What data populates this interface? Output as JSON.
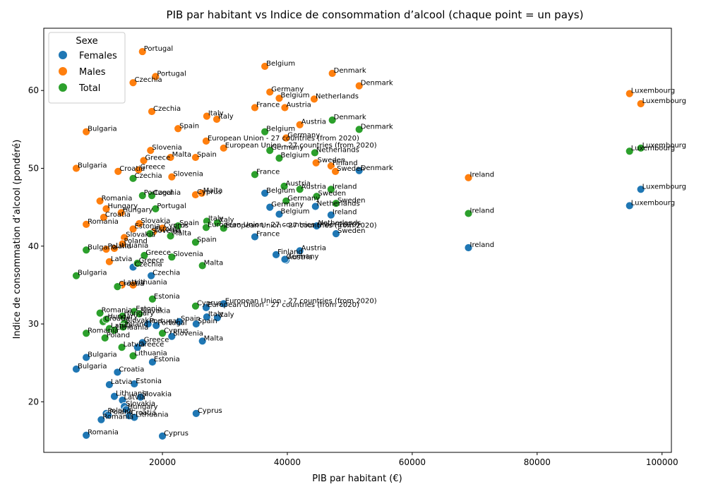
{
  "chart_data": {
    "type": "scatter",
    "title": "PIB par habitant vs Indice de consommation d’alcool (chaque point = un pays)",
    "xlabel": "PIB par habitant (€)",
    "ylabel": "Indice de consommation d’alcool (pondéré)",
    "xlim": [
      1000,
      101500
    ],
    "ylim": [
      13.5,
      68
    ],
    "xticks": [
      20000,
      40000,
      60000,
      80000,
      100000
    ],
    "xtick_labels": [
      "20000",
      "40000",
      "60000",
      "80000",
      "100000"
    ],
    "yticks": [
      20,
      30,
      40,
      50,
      60
    ],
    "ytick_labels": [
      "20",
      "30",
      "40",
      "50",
      "60"
    ],
    "grid": false,
    "legend": {
      "title": "Sexe",
      "placement": "top-left"
    },
    "series": [
      {
        "name": "Females",
        "color": "#1f77b4",
        "points": [
          {
            "x": 7800,
            "y": 25.7,
            "label": "Bulgaria"
          },
          {
            "x": 6200,
            "y": 24.2,
            "label": "Bulgaria"
          },
          {
            "x": 7800,
            "y": 15.7,
            "label": "Romania"
          },
          {
            "x": 10200,
            "y": 17.7,
            "label": "Romania"
          },
          {
            "x": 11000,
            "y": 18.5,
            "label": "Poland"
          },
          {
            "x": 11300,
            "y": 18.3,
            "label": "Poland"
          },
          {
            "x": 11500,
            "y": 22.2,
            "label": "Latvia"
          },
          {
            "x": 12300,
            "y": 20.7,
            "label": "Lithuania"
          },
          {
            "x": 12800,
            "y": 23.8,
            "label": "Croatia"
          },
          {
            "x": 13600,
            "y": 20.2,
            "label": "Latvia"
          },
          {
            "x": 13900,
            "y": 19.4,
            "label": "Slovakia"
          },
          {
            "x": 14200,
            "y": 19.0,
            "label": "Hungary"
          },
          {
            "x": 14700,
            "y": 18.2,
            "label": "Croatia"
          },
          {
            "x": 15500,
            "y": 18.0,
            "label": "Lithuania"
          },
          {
            "x": 15500,
            "y": 22.3,
            "label": "Estonia"
          },
          {
            "x": 16500,
            "y": 20.6,
            "label": "Slovakia"
          },
          {
            "x": 15300,
            "y": 37.3,
            "label": "Czechia"
          },
          {
            "x": 18200,
            "y": 36.2,
            "label": "Czechia"
          },
          {
            "x": 16800,
            "y": 27.6,
            "label": "Greece"
          },
          {
            "x": 16000,
            "y": 27.0,
            "label": "Greece"
          },
          {
            "x": 18400,
            "y": 25.1,
            "label": "Estonia"
          },
          {
            "x": 19000,
            "y": 29.8,
            "label": "Portugal"
          },
          {
            "x": 17700,
            "y": 30.0,
            "label": "Portugal"
          },
          {
            "x": 20000,
            "y": 15.6,
            "label": "Cyprus"
          },
          {
            "x": 21500,
            "y": 28.4,
            "label": "Slovenia"
          },
          {
            "x": 22700,
            "y": 30.3,
            "label": "Spain"
          },
          {
            "x": 25400,
            "y": 30.0,
            "label": "Spain"
          },
          {
            "x": 25400,
            "y": 18.5,
            "label": "Cyprus"
          },
          {
            "x": 26400,
            "y": 27.8,
            "label": "Malta"
          },
          {
            "x": 27100,
            "y": 30.9,
            "label": "Italy"
          },
          {
            "x": 28800,
            "y": 30.8,
            "label": "Italy"
          },
          {
            "x": 27000,
            "y": 32.1,
            "label": "European Union - 27 countries (from 2020)"
          },
          {
            "x": 29800,
            "y": 32.6,
            "label": "European Union - 27 countries (from 2020)"
          },
          {
            "x": 34800,
            "y": 41.2,
            "label": "France"
          },
          {
            "x": 36400,
            "y": 46.8,
            "label": "Belgium"
          },
          {
            "x": 37200,
            "y": 45.0,
            "label": "Germany"
          },
          {
            "x": 38700,
            "y": 44.1,
            "label": "Belgium"
          },
          {
            "x": 38200,
            "y": 38.9,
            "label": "Finland"
          },
          {
            "x": 39800,
            "y": 38.2,
            "label": "Austria"
          },
          {
            "x": 39600,
            "y": 38.3,
            "label": "Germany"
          },
          {
            "x": 42000,
            "y": 39.4,
            "label": "Austria"
          },
          {
            "x": 44500,
            "y": 45.1,
            "label": "Netherlands"
          },
          {
            "x": 44700,
            "y": 42.6,
            "label": "Netherlands"
          },
          {
            "x": 47000,
            "y": 44.0,
            "label": "Ireland"
          },
          {
            "x": 47800,
            "y": 41.6,
            "label": "Sweden"
          },
          {
            "x": 51500,
            "y": 49.7,
            "label": "Denmark"
          },
          {
            "x": 69000,
            "y": 39.8,
            "label": "Ireland"
          },
          {
            "x": 94800,
            "y": 45.2,
            "label": "Luxembourg"
          },
          {
            "x": 96600,
            "y": 47.3,
            "label": "Luxembourg"
          }
        ]
      },
      {
        "name": "Males",
        "color": "#ff7f0e",
        "points": [
          {
            "x": 7800,
            "y": 54.7,
            "label": "Bulgaria"
          },
          {
            "x": 6200,
            "y": 50.0,
            "label": "Bulgaria"
          },
          {
            "x": 7800,
            "y": 42.8,
            "label": "Romania"
          },
          {
            "x": 10000,
            "y": 45.8,
            "label": "Romania"
          },
          {
            "x": 10600,
            "y": 43.7,
            "label": "Croatia"
          },
          {
            "x": 11000,
            "y": 44.8,
            "label": "Hungary"
          },
          {
            "x": 11000,
            "y": 39.6,
            "label": "Poland"
          },
          {
            "x": 11500,
            "y": 38.0,
            "label": "Latvia"
          },
          {
            "x": 12300,
            "y": 39.7,
            "label": "Lithuania"
          },
          {
            "x": 12900,
            "y": 49.6,
            "label": "Croatia"
          },
          {
            "x": 13400,
            "y": 44.3,
            "label": "Hungary"
          },
          {
            "x": 13500,
            "y": 35.0,
            "label": "Latvia"
          },
          {
            "x": 13900,
            "y": 41.1,
            "label": "Slovakia"
          },
          {
            "x": 13600,
            "y": 40.3,
            "label": "Poland"
          },
          {
            "x": 15300,
            "y": 35.0,
            "label": "Lithuania"
          },
          {
            "x": 15300,
            "y": 42.2,
            "label": "Estonia"
          },
          {
            "x": 16300,
            "y": 42.9,
            "label": "Slovakia"
          },
          {
            "x": 15300,
            "y": 61.0,
            "label": "Czechia"
          },
          {
            "x": 16800,
            "y": 65.0,
            "label": "Portugal"
          },
          {
            "x": 18900,
            "y": 61.8,
            "label": "Portugal"
          },
          {
            "x": 18300,
            "y": 57.3,
            "label": "Czechia"
          },
          {
            "x": 16200,
            "y": 49.8,
            "label": "Greece"
          },
          {
            "x": 17000,
            "y": 51.0,
            "label": "Greece"
          },
          {
            "x": 18100,
            "y": 52.3,
            "label": "Slovenia"
          },
          {
            "x": 18500,
            "y": 41.8,
            "label": "Estonia"
          },
          {
            "x": 20000,
            "y": 42.3,
            "label": "Cyprus"
          },
          {
            "x": 21300,
            "y": 51.4,
            "label": "Malta"
          },
          {
            "x": 21500,
            "y": 48.9,
            "label": "Slovenia"
          },
          {
            "x": 22500,
            "y": 55.1,
            "label": "Spain"
          },
          {
            "x": 25300,
            "y": 51.4,
            "label": "Spain"
          },
          {
            "x": 25300,
            "y": 46.6,
            "label": "Cyprus"
          },
          {
            "x": 26300,
            "y": 46.8,
            "label": "Malta"
          },
          {
            "x": 27100,
            "y": 56.7,
            "label": "Italy"
          },
          {
            "x": 28700,
            "y": 56.3,
            "label": "Italy"
          },
          {
            "x": 27000,
            "y": 53.5,
            "label": "European Union - 27 countries (from 2020)"
          },
          {
            "x": 29800,
            "y": 52.6,
            "label": "European Union - 27 countries (from 2020)"
          },
          {
            "x": 34800,
            "y": 57.8,
            "label": "France"
          },
          {
            "x": 36400,
            "y": 63.1,
            "label": "Belgium"
          },
          {
            "x": 37200,
            "y": 59.8,
            "label": "Germany"
          },
          {
            "x": 38700,
            "y": 59.0,
            "label": "Belgium"
          },
          {
            "x": 39600,
            "y": 57.8,
            "label": "Austria"
          },
          {
            "x": 39800,
            "y": 53.9,
            "label": "Germany"
          },
          {
            "x": 42000,
            "y": 55.6,
            "label": "Austria"
          },
          {
            "x": 44300,
            "y": 58.9,
            "label": "Netherlands"
          },
          {
            "x": 44600,
            "y": 50.7,
            "label": "Sweden"
          },
          {
            "x": 47000,
            "y": 50.3,
            "label": "Finland"
          },
          {
            "x": 47700,
            "y": 49.6,
            "label": "Sweden"
          },
          {
            "x": 47200,
            "y": 62.2,
            "label": "Denmark"
          },
          {
            "x": 51500,
            "y": 60.6,
            "label": "Denmark"
          },
          {
            "x": 69000,
            "y": 48.8,
            "label": "Ireland"
          },
          {
            "x": 94800,
            "y": 59.6,
            "label": "Luxembourg"
          },
          {
            "x": 96600,
            "y": 58.3,
            "label": "Luxembourg"
          }
        ]
      },
      {
        "name": "Total",
        "color": "#2ca02c",
        "points": [
          {
            "x": 7800,
            "y": 39.5,
            "label": "Bulgaria"
          },
          {
            "x": 6200,
            "y": 36.2,
            "label": "Bulgaria"
          },
          {
            "x": 7800,
            "y": 28.8,
            "label": "Romania"
          },
          {
            "x": 10000,
            "y": 31.4,
            "label": "Romania"
          },
          {
            "x": 10500,
            "y": 30.3,
            "label": "Croatia"
          },
          {
            "x": 11000,
            "y": 30.6,
            "label": "Hungary"
          },
          {
            "x": 10800,
            "y": 28.2,
            "label": "Poland"
          },
          {
            "x": 11500,
            "y": 29.4,
            "label": "Latvia"
          },
          {
            "x": 12300,
            "y": 29.2,
            "label": "Lithuania"
          },
          {
            "x": 12800,
            "y": 34.8,
            "label": "Croatia"
          },
          {
            "x": 13600,
            "y": 31.0,
            "label": "Hungary"
          },
          {
            "x": 13500,
            "y": 27.0,
            "label": "Latvia"
          },
          {
            "x": 13900,
            "y": 30.1,
            "label": "Slovakia"
          },
          {
            "x": 13700,
            "y": 29.6,
            "label": "Poland"
          },
          {
            "x": 15300,
            "y": 25.9,
            "label": "Lithuania"
          },
          {
            "x": 15500,
            "y": 31.6,
            "label": "Estonia"
          },
          {
            "x": 16300,
            "y": 31.3,
            "label": "Slovakia"
          },
          {
            "x": 15300,
            "y": 48.7,
            "label": "Czechia"
          },
          {
            "x": 16800,
            "y": 46.5,
            "label": "Portugal"
          },
          {
            "x": 18300,
            "y": 46.5,
            "label": "Czechia"
          },
          {
            "x": 18900,
            "y": 44.8,
            "label": "Portugal"
          },
          {
            "x": 16000,
            "y": 37.8,
            "label": "Greece"
          },
          {
            "x": 17100,
            "y": 38.8,
            "label": "Greece"
          },
          {
            "x": 18000,
            "y": 41.6,
            "label": "Slovenia"
          },
          {
            "x": 18400,
            "y": 33.2,
            "label": "Estonia"
          },
          {
            "x": 20000,
            "y": 28.8,
            "label": "Cyprus"
          },
          {
            "x": 21300,
            "y": 41.3,
            "label": "Malta"
          },
          {
            "x": 21500,
            "y": 38.6,
            "label": "Slovenia"
          },
          {
            "x": 22500,
            "y": 42.6,
            "label": "Spain"
          },
          {
            "x": 25300,
            "y": 40.5,
            "label": "Spain"
          },
          {
            "x": 25300,
            "y": 32.3,
            "label": "Cyprus"
          },
          {
            "x": 26400,
            "y": 37.5,
            "label": "Malta"
          },
          {
            "x": 27100,
            "y": 43.2,
            "label": "Italy"
          },
          {
            "x": 28800,
            "y": 43.0,
            "label": "Italy"
          },
          {
            "x": 27000,
            "y": 42.4,
            "label": "European Union - 27 countries (from 2020)"
          },
          {
            "x": 29800,
            "y": 42.3,
            "label": "European Union - 27 countries (from 2020)"
          },
          {
            "x": 34800,
            "y": 49.2,
            "label": "France"
          },
          {
            "x": 36400,
            "y": 54.7,
            "label": "Belgium"
          },
          {
            "x": 37200,
            "y": 52.3,
            "label": "Germany"
          },
          {
            "x": 38700,
            "y": 51.3,
            "label": "Belgium"
          },
          {
            "x": 39500,
            "y": 47.7,
            "label": "Austria"
          },
          {
            "x": 39800,
            "y": 45.8,
            "label": "Germany"
          },
          {
            "x": 42000,
            "y": 47.3,
            "label": "Austria"
          },
          {
            "x": 44400,
            "y": 52.0,
            "label": "Netherlands"
          },
          {
            "x": 44700,
            "y": 46.4,
            "label": "Sweden"
          },
          {
            "x": 47000,
            "y": 47.3,
            "label": "Ireland"
          },
          {
            "x": 47800,
            "y": 45.5,
            "label": "Sweden"
          },
          {
            "x": 47200,
            "y": 56.2,
            "label": "Denmark"
          },
          {
            "x": 51500,
            "y": 55.0,
            "label": "Denmark"
          },
          {
            "x": 69000,
            "y": 44.2,
            "label": "Ireland"
          },
          {
            "x": 94800,
            "y": 52.2,
            "label": "Luxembourg"
          },
          {
            "x": 96600,
            "y": 52.6,
            "label": "Luxembourg"
          }
        ]
      }
    ]
  }
}
